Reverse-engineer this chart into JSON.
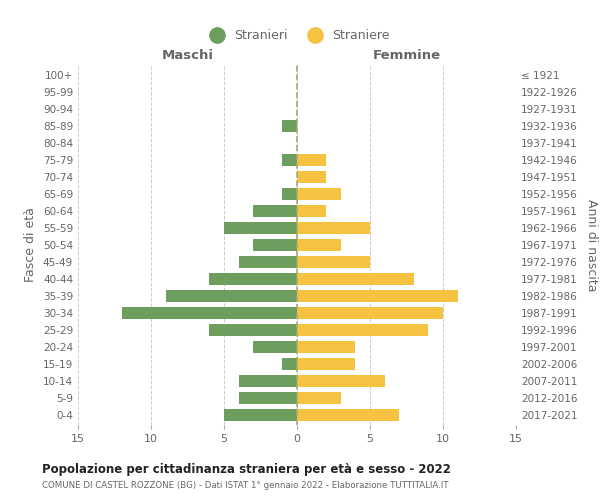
{
  "age_groups": [
    "100+",
    "95-99",
    "90-94",
    "85-89",
    "80-84",
    "75-79",
    "70-74",
    "65-69",
    "60-64",
    "55-59",
    "50-54",
    "45-49",
    "40-44",
    "35-39",
    "30-34",
    "25-29",
    "20-24",
    "15-19",
    "10-14",
    "5-9",
    "0-4"
  ],
  "birth_years": [
    "≤ 1921",
    "1922-1926",
    "1927-1931",
    "1932-1936",
    "1937-1941",
    "1942-1946",
    "1947-1951",
    "1952-1956",
    "1957-1961",
    "1962-1966",
    "1967-1971",
    "1972-1976",
    "1977-1981",
    "1982-1986",
    "1987-1991",
    "1992-1996",
    "1997-2001",
    "2002-2006",
    "2007-2011",
    "2012-2016",
    "2017-2021"
  ],
  "maschi": [
    0,
    0,
    0,
    1,
    0,
    1,
    0,
    1,
    3,
    5,
    3,
    4,
    6,
    9,
    12,
    6,
    3,
    1,
    4,
    4,
    5
  ],
  "femmine": [
    0,
    0,
    0,
    0,
    0,
    2,
    2,
    3,
    2,
    5,
    3,
    5,
    8,
    11,
    10,
    9,
    4,
    4,
    6,
    3,
    7
  ],
  "male_color": "#6d9e5e",
  "female_color": "#f5c242",
  "title": "Popolazione per cittadinanza straniera per età e sesso - 2022",
  "subtitle": "COMUNE DI CASTEL ROZZONE (BG) - Dati ISTAT 1° gennaio 2022 - Elaborazione TUTTITALIA.IT",
  "ylabel_left": "Fasce di età",
  "ylabel_right": "Anni di nascita",
  "xlabel_maschi": "Maschi",
  "xlabel_femmine": "Femmine",
  "legend_stranieri": "Stranieri",
  "legend_straniere": "Straniere",
  "xlim": 15,
  "bg_color": "#ffffff",
  "grid_color": "#cccccc",
  "text_color": "#666666"
}
